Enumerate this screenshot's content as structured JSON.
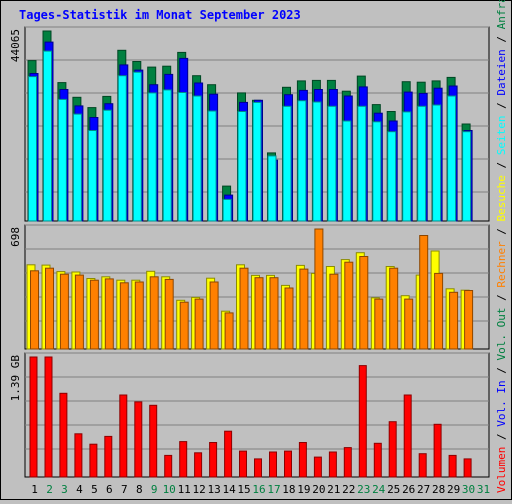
{
  "title": "Tages-Statistik im Monat September 2023",
  "colors": {
    "background": "#c0c0c0",
    "frame": "#808080",
    "title": "#0000ff",
    "anfragen": "#008040",
    "dateien": "#0000ff",
    "seiten": "#00ffff",
    "besuche": "#ffff00",
    "rechner": "#ff8000",
    "volumen": "#ff0000",
    "weekday_label": "#000000",
    "weekend_label": "#008040"
  },
  "right_legend": {
    "top": [
      {
        "text": "Anfragen",
        "color": "#008040"
      },
      {
        "text": "Dateien",
        "color": "#0000ff"
      },
      {
        "text": "Seiten",
        "color": "#00ffff"
      },
      {
        "text": "Besuche",
        "color": "#ffff00"
      },
      {
        "text": "Rechner",
        "color": "#ff8000"
      },
      {
        "text": "Vol. Out",
        "color": "#008040"
      },
      {
        "text": "Vol. In",
        "color": "#0000ff"
      },
      {
        "text": "Volumen",
        "color": "#ff0000"
      }
    ],
    "separator": " / "
  },
  "chart_data": [
    {
      "type": "bar",
      "panel": "requests",
      "max_label": "44065",
      "ylim": [
        0,
        44065
      ],
      "categories": [
        "1",
        "2",
        "3",
        "4",
        "5",
        "6",
        "7",
        "8",
        "9",
        "10",
        "11",
        "12",
        "13",
        "14",
        "15",
        "16",
        "17",
        "18",
        "19",
        "20",
        "21",
        "22",
        "23",
        "24",
        "25",
        "26",
        "27",
        "28",
        "29",
        "30",
        "31"
      ],
      "weekend": [
        "2",
        "3",
        "9",
        "10",
        "16",
        "17",
        "23",
        "24",
        "30",
        "31"
      ],
      "series": [
        {
          "name": "Anfragen",
          "values": [
            37200,
            44065,
            32100,
            28700,
            26300,
            28900,
            39600,
            37000,
            35700,
            35900,
            39100,
            33700,
            31600,
            8100,
            29700,
            28000,
            15800,
            31000,
            32500,
            32600,
            32600,
            30100,
            33600,
            27000,
            25400,
            32300,
            32200,
            32500,
            33300,
            22500,
            0
          ]
        },
        {
          "name": "Dateien",
          "values": [
            34200,
            41500,
            30500,
            26700,
            24000,
            27200,
            36200,
            35000,
            31600,
            34000,
            37700,
            32000,
            29400,
            6000,
            27500,
            28000,
            14100,
            29300,
            30300,
            30500,
            30500,
            29000,
            31100,
            25000,
            23200,
            29900,
            29600,
            30800,
            31300,
            21000,
            0
          ]
        },
        {
          "name": "Seiten",
          "values": [
            33500,
            39400,
            28200,
            24800,
            21000,
            25700,
            33700,
            34500,
            29700,
            30400,
            29800,
            29000,
            25500,
            5000,
            25400,
            27500,
            15100,
            26600,
            27900,
            27600,
            26600,
            23200,
            26600,
            23000,
            20700,
            25300,
            26600,
            26900,
            29000,
            20700,
            0
          ]
        }
      ]
    },
    {
      "type": "bar",
      "panel": "visits",
      "max_label": "698",
      "ylim": [
        0,
        698
      ],
      "categories": [
        "1",
        "2",
        "3",
        "4",
        "5",
        "6",
        "7",
        "8",
        "9",
        "10",
        "11",
        "12",
        "13",
        "14",
        "15",
        "16",
        "17",
        "18",
        "19",
        "20",
        "21",
        "22",
        "23",
        "24",
        "25",
        "26",
        "27",
        "28",
        "29",
        "30",
        "31"
      ],
      "series": [
        {
          "name": "Besuche",
          "values": [
            490,
            488,
            450,
            448,
            410,
            420,
            400,
            400,
            452,
            420,
            283,
            300,
            412,
            220,
            490,
            428,
            428,
            370,
            486,
            440,
            480,
            520,
            560,
            298,
            480,
            310,
            430,
            570,
            350,
            342,
            0
          ]
        },
        {
          "name": "Rechner",
          "values": [
            455,
            470,
            435,
            430,
            400,
            408,
            385,
            390,
            420,
            405,
            272,
            290,
            390,
            210,
            470,
            415,
            415,
            355,
            465,
            698,
            435,
            505,
            538,
            290,
            470,
            290,
            660,
            440,
            330,
            340,
            0
          ]
        }
      ]
    },
    {
      "type": "bar",
      "panel": "volume",
      "max_label": "1.39 GB",
      "ylim": [
        0,
        1.39
      ],
      "categories": [
        "1",
        "2",
        "3",
        "4",
        "5",
        "6",
        "7",
        "8",
        "9",
        "10",
        "11",
        "12",
        "13",
        "14",
        "15",
        "16",
        "17",
        "18",
        "19",
        "20",
        "21",
        "22",
        "23",
        "24",
        "25",
        "26",
        "27",
        "28",
        "29",
        "30",
        "31"
      ],
      "series": [
        {
          "name": "Volumen",
          "values": [
            1.39,
            1.39,
            0.97,
            0.5,
            0.38,
            0.47,
            0.95,
            0.87,
            0.83,
            0.25,
            0.41,
            0.28,
            0.4,
            0.53,
            0.3,
            0.21,
            0.29,
            0.3,
            0.4,
            0.23,
            0.29,
            0.34,
            1.29,
            0.39,
            0.64,
            0.95,
            0.27,
            0.61,
            0.25,
            0.21,
            0
          ]
        }
      ]
    }
  ]
}
